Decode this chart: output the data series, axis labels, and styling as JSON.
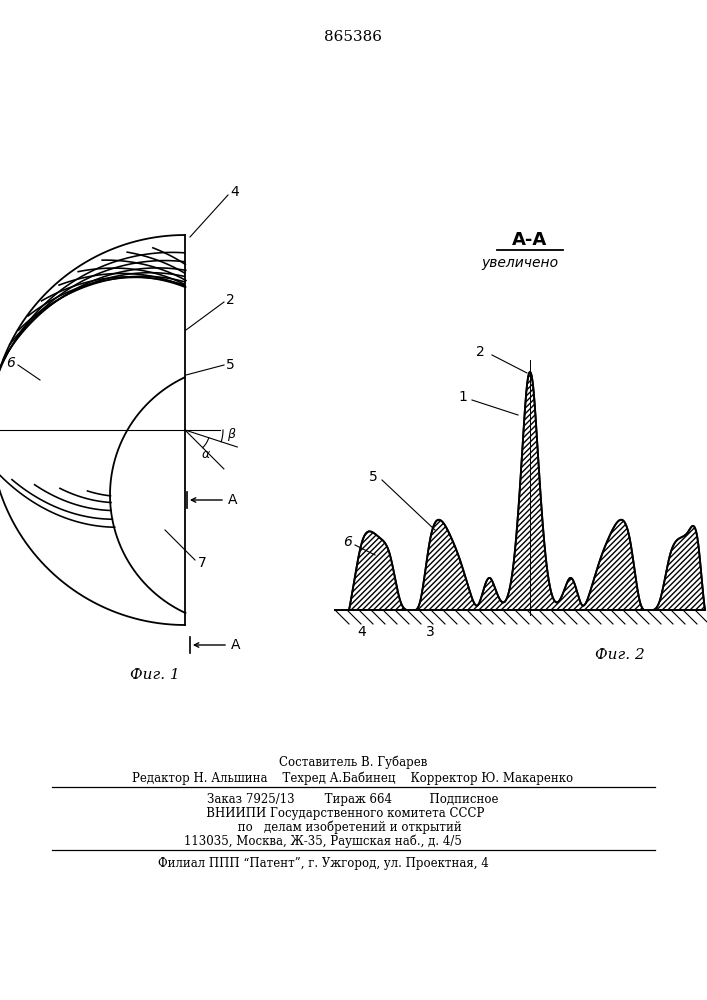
{
  "patent_number": "865386",
  "fig1_label": "Фиг. 1",
  "fig2_label": "Фиг. 2",
  "section_label": "A-A",
  "section_sublabel": "увеличено",
  "background_color": "#ffffff",
  "line_color": "#000000",
  "footer_line1": "Составитель В. Губарев",
  "footer_line2": "Редактор Н. Альшина    Техред А.Бабинец    Корректор Ю. Макаренко",
  "footer_line3": "Заказ 7925/13        Тираж 664          Подписное",
  "footer_line4": "   ВНИИПИ Государственного комитета СССР",
  "footer_line5": "     по   делам изобретений и открытий",
  "footer_line6": "113035, Москва, Ж-35, Раушская наб., д. 4/5",
  "footer_line7": "Филиал ППП “Патент”, г. Ужгород, ул. Проектная, 4"
}
